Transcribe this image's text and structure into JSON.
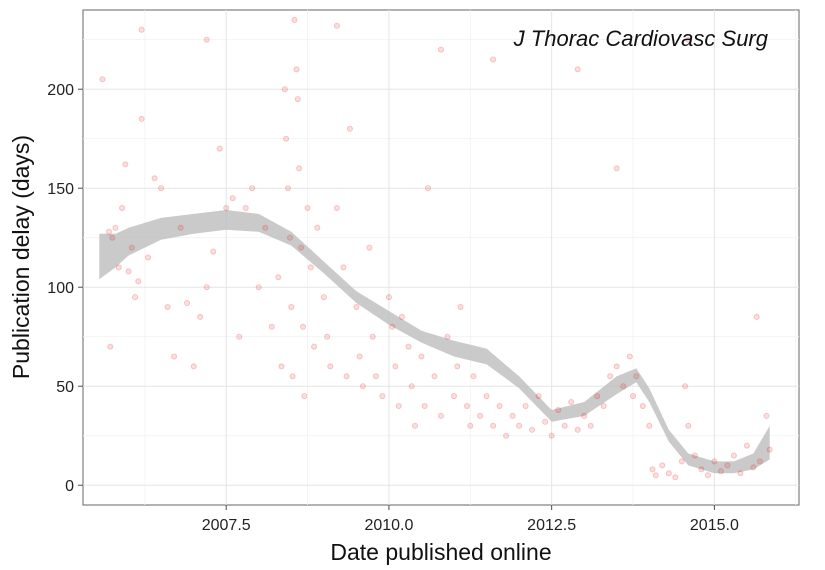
{
  "chart_data": {
    "type": "scatter",
    "title": "",
    "annotation": "J Thorac Cardiovasc Surg",
    "xlabel": "Date published online",
    "ylabel": "Publication delay (days)",
    "xlim": [
      2005.3,
      2016.3
    ],
    "ylim": [
      -10,
      240
    ],
    "x_ticks": [
      2007.5,
      2010.0,
      2012.5,
      2015.0
    ],
    "x_tick_labels": [
      "2007.5",
      "2010.0",
      "2012.5",
      "2015.0"
    ],
    "y_ticks": [
      0,
      50,
      100,
      150,
      200
    ],
    "y_tick_labels": [
      "0",
      "50",
      "100",
      "150",
      "200"
    ],
    "grid": true,
    "point_color": "#e31a1c",
    "point_alpha": 0.15,
    "smooth_band_color": "#bdbdbd",
    "smooth": {
      "x": [
        5.55,
        5.8,
        6.0,
        6.5,
        7.0,
        7.5,
        8.0,
        8.5,
        9.0,
        9.5,
        10.0,
        10.5,
        11.0,
        11.5,
        12.0,
        12.5,
        13.0,
        13.5,
        13.8,
        14.0,
        14.3,
        14.6,
        15.0,
        15.3,
        15.6,
        15.85
      ],
      "lower": [
        104,
        110,
        116,
        124,
        127,
        129,
        128,
        121,
        107,
        92,
        81,
        72,
        65,
        61,
        49,
        32,
        35,
        46,
        52,
        42,
        22,
        10,
        6,
        6,
        8,
        13
      ],
      "upper": [
        127,
        127,
        130,
        135,
        137,
        139,
        137,
        128,
        113,
        98,
        88,
        78,
        73,
        69,
        55,
        38,
        42,
        55,
        59,
        49,
        28,
        16,
        12,
        12,
        16,
        30
      ]
    },
    "points": [
      [
        5.6,
        205
      ],
      [
        5.7,
        128
      ],
      [
        5.72,
        70
      ],
      [
        5.75,
        125
      ],
      [
        5.8,
        130
      ],
      [
        5.85,
        110
      ],
      [
        5.9,
        140
      ],
      [
        5.95,
        162
      ],
      [
        6.0,
        108
      ],
      [
        6.05,
        120
      ],
      [
        6.1,
        95
      ],
      [
        6.15,
        103
      ],
      [
        6.2,
        185
      ],
      [
        6.3,
        115
      ],
      [
        6.4,
        155
      ],
      [
        6.5,
        150
      ],
      [
        6.6,
        90
      ],
      [
        6.7,
        65
      ],
      [
        6.8,
        130
      ],
      [
        6.9,
        92
      ],
      [
        7.0,
        60
      ],
      [
        7.1,
        85
      ],
      [
        7.2,
        100
      ],
      [
        7.3,
        118
      ],
      [
        7.4,
        170
      ],
      [
        7.5,
        140
      ],
      [
        7.6,
        145
      ],
      [
        7.7,
        75
      ],
      [
        7.8,
        140
      ],
      [
        7.9,
        150
      ],
      [
        8.0,
        100
      ],
      [
        8.1,
        130
      ],
      [
        8.2,
        80
      ],
      [
        8.3,
        105
      ],
      [
        8.35,
        60
      ],
      [
        8.4,
        200
      ],
      [
        8.42,
        175
      ],
      [
        8.45,
        150
      ],
      [
        8.48,
        125
      ],
      [
        8.5,
        90
      ],
      [
        8.52,
        55
      ],
      [
        8.55,
        235
      ],
      [
        8.58,
        210
      ],
      [
        8.6,
        195
      ],
      [
        8.62,
        160
      ],
      [
        8.65,
        120
      ],
      [
        8.68,
        80
      ],
      [
        8.7,
        45
      ],
      [
        8.75,
        140
      ],
      [
        8.8,
        110
      ],
      [
        8.85,
        70
      ],
      [
        8.9,
        130
      ],
      [
        9.0,
        95
      ],
      [
        9.05,
        75
      ],
      [
        9.1,
        60
      ],
      [
        9.2,
        140
      ],
      [
        9.3,
        110
      ],
      [
        9.35,
        55
      ],
      [
        9.4,
        180
      ],
      [
        9.5,
        90
      ],
      [
        9.55,
        65
      ],
      [
        9.6,
        50
      ],
      [
        9.7,
        120
      ],
      [
        9.75,
        75
      ],
      [
        9.8,
        55
      ],
      [
        9.9,
        45
      ],
      [
        10.0,
        95
      ],
      [
        10.05,
        80
      ],
      [
        10.1,
        60
      ],
      [
        10.15,
        40
      ],
      [
        10.2,
        85
      ],
      [
        10.3,
        70
      ],
      [
        10.35,
        50
      ],
      [
        10.4,
        30
      ],
      [
        10.5,
        65
      ],
      [
        10.55,
        40
      ],
      [
        10.6,
        150
      ],
      [
        10.7,
        55
      ],
      [
        10.8,
        35
      ],
      [
        10.9,
        75
      ],
      [
        11.0,
        45
      ],
      [
        11.05,
        60
      ],
      [
        11.1,
        90
      ],
      [
        11.2,
        40
      ],
      [
        11.25,
        30
      ],
      [
        11.3,
        55
      ],
      [
        11.4,
        35
      ],
      [
        11.5,
        45
      ],
      [
        11.6,
        30
      ],
      [
        11.7,
        40
      ],
      [
        11.8,
        25
      ],
      [
        11.9,
        35
      ],
      [
        12.0,
        30
      ],
      [
        12.1,
        40
      ],
      [
        12.2,
        28
      ],
      [
        12.3,
        45
      ],
      [
        12.4,
        32
      ],
      [
        12.5,
        25
      ],
      [
        12.6,
        38
      ],
      [
        12.7,
        30
      ],
      [
        12.8,
        42
      ],
      [
        12.9,
        28
      ],
      [
        13.0,
        35
      ],
      [
        13.1,
        30
      ],
      [
        13.2,
        45
      ],
      [
        13.3,
        40
      ],
      [
        13.4,
        55
      ],
      [
        13.5,
        60
      ],
      [
        13.6,
        50
      ],
      [
        13.7,
        65
      ],
      [
        13.75,
        45
      ],
      [
        13.8,
        55
      ],
      [
        13.9,
        40
      ],
      [
        14.0,
        30
      ],
      [
        14.05,
        8
      ],
      [
        14.1,
        5
      ],
      [
        14.2,
        10
      ],
      [
        14.3,
        6
      ],
      [
        14.4,
        4
      ],
      [
        14.5,
        12
      ],
      [
        14.55,
        50
      ],
      [
        14.6,
        30
      ],
      [
        14.7,
        15
      ],
      [
        14.8,
        8
      ],
      [
        14.9,
        5
      ],
      [
        15.0,
        12
      ],
      [
        15.1,
        7
      ],
      [
        15.2,
        10
      ],
      [
        15.3,
        15
      ],
      [
        15.4,
        6
      ],
      [
        15.5,
        20
      ],
      [
        15.6,
        9
      ],
      [
        15.65,
        85
      ],
      [
        15.7,
        12
      ],
      [
        15.8,
        35
      ],
      [
        15.85,
        18
      ],
      [
        6.2,
        230
      ],
      [
        7.2,
        225
      ],
      [
        9.2,
        232
      ],
      [
        10.8,
        220
      ],
      [
        11.6,
        215
      ],
      [
        12.9,
        210
      ],
      [
        14.6,
        225
      ],
      [
        13.5,
        160
      ]
    ]
  }
}
